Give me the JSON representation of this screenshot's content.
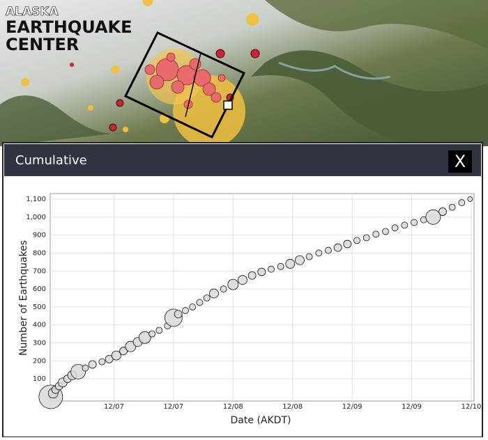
{
  "logo": {
    "line1": "ALASKA",
    "line2": "EARTHQUAKE",
    "line3": "CENTER"
  },
  "modal": {
    "title": "Cumulative",
    "close": "X"
  },
  "chart_data": {
    "type": "scatter",
    "xlabel": "Date (AKDT)",
    "ylabel": "Number of Earthquakes",
    "x": [
      6.47,
      6.49,
      6.51,
      6.54,
      6.57,
      6.61,
      6.65,
      6.7,
      6.76,
      6.82,
      6.9,
      6.96,
      7.02,
      7.08,
      7.14,
      7.2,
      7.26,
      7.32,
      7.38,
      7.45,
      7.5,
      7.54,
      7.6,
      7.66,
      7.72,
      7.78,
      7.84,
      7.92,
      8.0,
      8.08,
      8.16,
      8.24,
      8.32,
      8.4,
      8.48,
      8.56,
      8.64,
      8.72,
      8.8,
      8.88,
      8.96,
      9.04,
      9.12,
      9.2,
      9.28,
      9.36,
      9.44,
      9.52,
      9.6,
      9.68,
      9.76,
      9.84,
      9.92,
      9.99
    ],
    "values": [
      0,
      20,
      40,
      60,
      80,
      100,
      120,
      140,
      160,
      180,
      195,
      210,
      230,
      255,
      280,
      305,
      330,
      350,
      370,
      395,
      440,
      460,
      480,
      500,
      525,
      550,
      575,
      600,
      625,
      650,
      675,
      695,
      710,
      725,
      740,
      760,
      780,
      800,
      815,
      830,
      850,
      870,
      885,
      905,
      920,
      940,
      955,
      970,
      985,
      1000,
      1030,
      1055,
      1080,
      1100
    ],
    "sizes": [
      5.5,
      3.5,
      3.2,
      3.2,
      3.4,
      3.2,
      3.4,
      4.2,
      3,
      3.2,
      3,
      3.2,
      3.4,
      3.2,
      3.6,
      3.4,
      3.8,
      3,
      3,
      3,
      4.6,
      3.2,
      3,
      3,
      3,
      3,
      3.4,
      3,
      3.6,
      3.4,
      3.2,
      3.2,
      3,
      3,
      3.4,
      3.4,
      3,
      3,
      3,
      3.2,
      3.2,
      3,
      3,
      3,
      3,
      3,
      3,
      3,
      3,
      4.2,
      3.2,
      3,
      3,
      2.8
    ],
    "color": "#d9d9d9",
    "xlim": [
      6.465,
      10.0
    ],
    "ylim": [
      0,
      1100
    ],
    "xticks": [
      {
        "value": 7.0,
        "label": "12/07"
      },
      {
        "value": 7.5,
        "label": "12/07"
      },
      {
        "value": 8.0,
        "label": "12/08"
      },
      {
        "value": 8.5,
        "label": "12/08"
      },
      {
        "value": 9.0,
        "label": "12/09"
      },
      {
        "value": 9.5,
        "label": "12/09"
      },
      {
        "value": 10.0,
        "label": "12/10"
      }
    ],
    "yticks": [
      100,
      200,
      300,
      400,
      500,
      600,
      700,
      800,
      900,
      {
        "value": 1000,
        "label": "1,000"
      },
      {
        "value": 1100,
        "label": "1,100"
      }
    ],
    "grid": true
  }
}
